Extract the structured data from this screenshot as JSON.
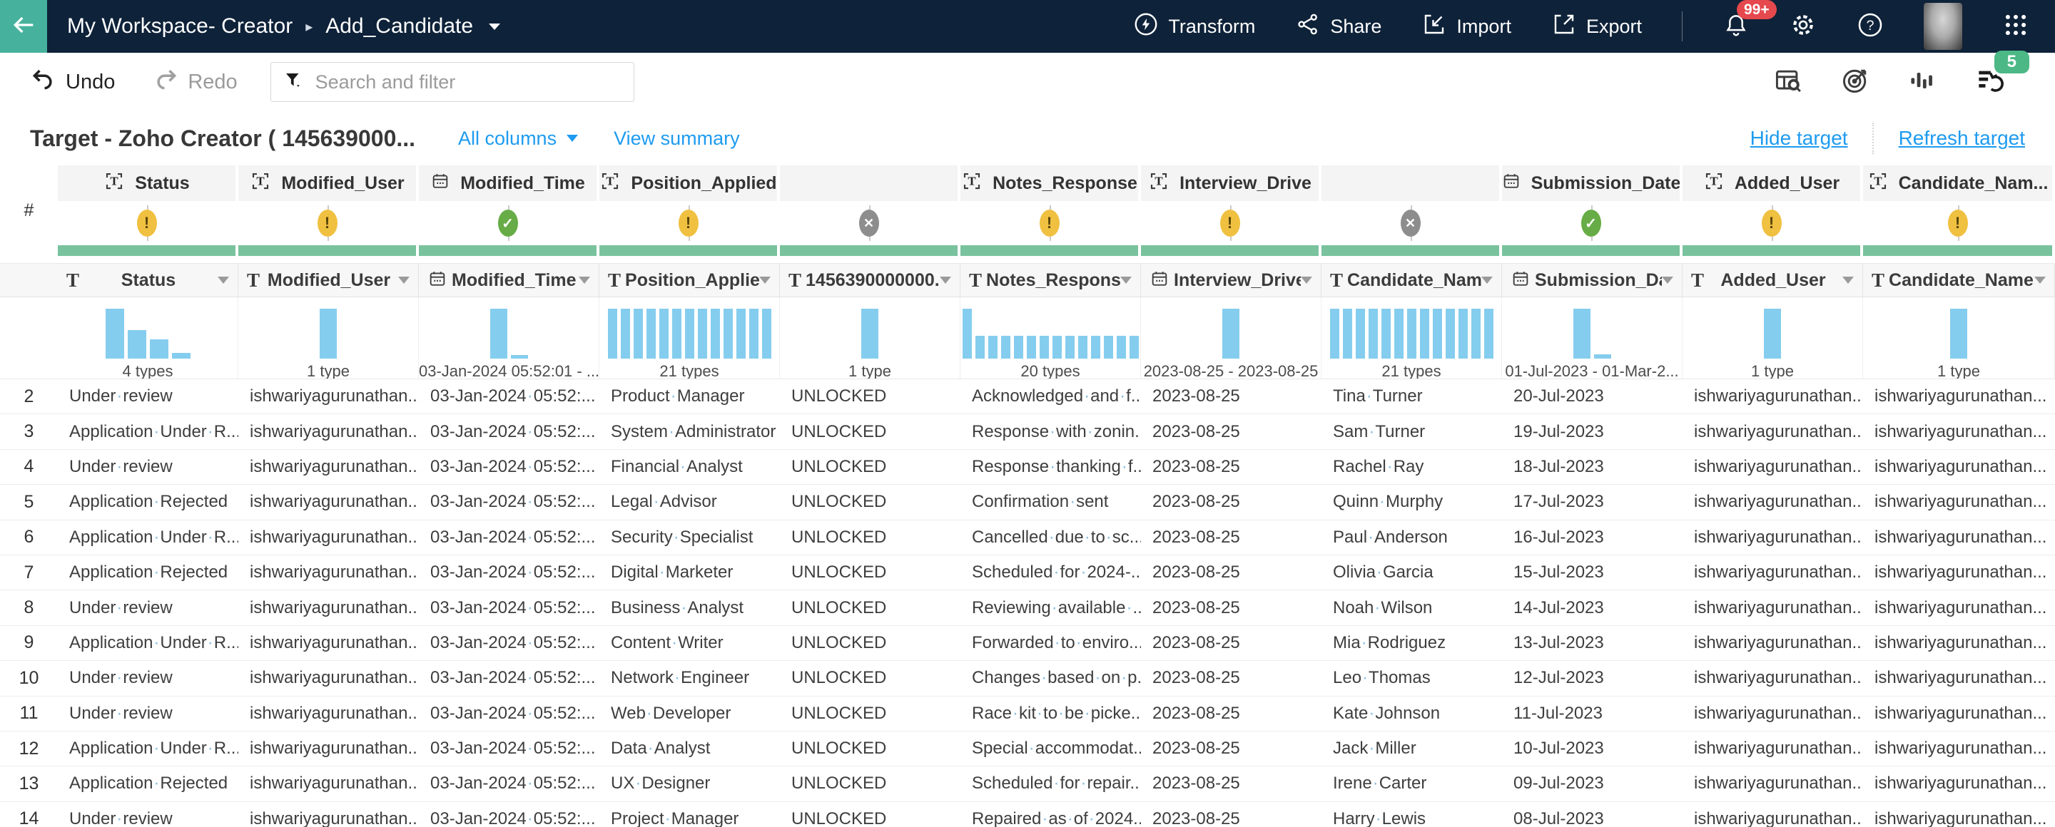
{
  "topbar": {
    "breadcrumb_root": "My Workspace- Creator",
    "breadcrumb_current": "Add_Candidate",
    "transform_label": "Transform",
    "share_label": "Share",
    "import_label": "Import",
    "export_label": "Export",
    "notification_badge": "99+"
  },
  "toolbar": {
    "undo_label": "Undo",
    "redo_label": "Redo",
    "search_placeholder": "Search and filter",
    "pipeline_badge": "5"
  },
  "target_bar": {
    "title": "Target - Zoho Creator ( 145639000...",
    "all_columns_label": "All columns",
    "view_summary_label": "View summary",
    "hide_target_label": "Hide target",
    "refresh_target_label": "Refresh target"
  },
  "colors": {
    "topbar_bg": "#0e2239",
    "back_teal": "#46b29d",
    "accent_blue": "#1e9bf0",
    "progress_green": "#79c29e",
    "status_ok": "#67ac46",
    "status_warning": "#f0c041",
    "status_unmapped": "#8d8d8d",
    "histogram_bar": "#85cdee",
    "badge_green": "#4cb885",
    "badge_red": "#e5484d"
  },
  "grid": {
    "row_header": "#",
    "columns": [
      {
        "target": {
          "name": "Status",
          "type": "text",
          "status": "warning"
        },
        "source": {
          "name": "Status",
          "type": "text"
        },
        "hist": {
          "bars": [
            100,
            57,
            38,
            11
          ],
          "label": "4 types"
        }
      },
      {
        "target": {
          "name": "Modified_User",
          "type": "text",
          "status": "warning"
        },
        "source": {
          "name": "Modified_User",
          "type": "text"
        },
        "hist": {
          "bars": [
            100
          ],
          "label": "1 type"
        }
      },
      {
        "target": {
          "name": "Modified_Time",
          "type": "date",
          "status": "ok"
        },
        "source": {
          "name": "Modified_Time",
          "type": "date"
        },
        "hist": {
          "bars": [
            100,
            7
          ],
          "label": "03-Jan-2024 05:52:01 - ..."
        }
      },
      {
        "target": {
          "name": "Position_Applied",
          "type": "text",
          "status": "warning"
        },
        "source": {
          "name": "Position_Applied",
          "type": "text"
        },
        "hist": {
          "bars": [
            100,
            100,
            100,
            100,
            100,
            100,
            100,
            100,
            100,
            100,
            100,
            100,
            100
          ],
          "label": "21 types"
        }
      },
      {
        "target": {
          "name": "",
          "type": "",
          "status": "none"
        },
        "source": {
          "name": "1456390000000...",
          "type": "text"
        },
        "hist": {
          "bars": [
            100
          ],
          "label": "1 type"
        }
      },
      {
        "target": {
          "name": "Notes_Response",
          "type": "text",
          "status": "warning"
        },
        "source": {
          "name": "Notes_Response",
          "type": "text"
        },
        "hist": {
          "bars": [
            100,
            46,
            46,
            46,
            46,
            46,
            46,
            46,
            46,
            46,
            46,
            46,
            46,
            46
          ],
          "label": "20 types"
        }
      },
      {
        "target": {
          "name": "Interview_Drive",
          "type": "text",
          "status": "warning"
        },
        "source": {
          "name": "Interview_Drive",
          "type": "date"
        },
        "hist": {
          "bars": [
            100
          ],
          "label": "2023-08-25 - 2023-08-25"
        }
      },
      {
        "target": {
          "name": "",
          "type": "",
          "status": "none"
        },
        "source": {
          "name": "Candidate_Name",
          "type": "text"
        },
        "hist": {
          "bars": [
            100,
            100,
            100,
            100,
            100,
            100,
            100,
            100,
            100,
            100,
            100,
            100,
            100
          ],
          "label": "21 types"
        }
      },
      {
        "target": {
          "name": "Submission_Date",
          "type": "date",
          "status": "ok"
        },
        "source": {
          "name": "Submission_Date",
          "type": "date"
        },
        "hist": {
          "bars": [
            100,
            8
          ],
          "label": "01-Jul-2023 - 01-Mar-2..."
        }
      },
      {
        "target": {
          "name": "Added_User",
          "type": "text",
          "status": "warning"
        },
        "source": {
          "name": "Added_User",
          "type": "text"
        },
        "hist": {
          "bars": [
            100
          ],
          "label": "1 type"
        }
      },
      {
        "target": {
          "name": "Candidate_Nam...",
          "type": "text",
          "status": "warning"
        },
        "source": {
          "name": "Candidate_Name....",
          "type": "text"
        },
        "hist": {
          "bars": [
            100
          ],
          "label": "1 type"
        }
      }
    ],
    "rows": [
      {
        "num": "2",
        "cells": [
          "Under review",
          "ishwariyagurunathan...",
          "03-Jan-2024 05:52:...",
          "Product Manager",
          "UNLOCKED",
          "Acknowledged and f...",
          "2023-08-25",
          "Tina Turner",
          "20-Jul-2023",
          "ishwariyagurunathan...",
          "ishwariyagurunathan..."
        ]
      },
      {
        "num": "3",
        "cells": [
          "Application Under R...",
          "ishwariyagurunathan...",
          "03-Jan-2024 05:52:...",
          "System Administrator",
          "UNLOCKED",
          "Response with zonin...",
          "2023-08-25",
          "Sam Turner",
          "19-Jul-2023",
          "ishwariyagurunathan...",
          "ishwariyagurunathan..."
        ]
      },
      {
        "num": "4",
        "cells": [
          "Under review",
          "ishwariyagurunathan...",
          "03-Jan-2024 05:52:...",
          "Financial Analyst",
          "UNLOCKED",
          "Response thanking f...",
          "2023-08-25",
          "Rachel Ray",
          "18-Jul-2023",
          "ishwariyagurunathan...",
          "ishwariyagurunathan..."
        ]
      },
      {
        "num": "5",
        "cells": [
          "Application Rejected",
          "ishwariyagurunathan...",
          "03-Jan-2024 05:52:...",
          "Legal Advisor",
          "UNLOCKED",
          "Confirmation sent",
          "2023-08-25",
          "Quinn Murphy",
          "17-Jul-2023",
          "ishwariyagurunathan...",
          "ishwariyagurunathan..."
        ]
      },
      {
        "num": "6",
        "cells": [
          "Application Under R...",
          "ishwariyagurunathan...",
          "03-Jan-2024 05:52:...",
          "Security Specialist",
          "UNLOCKED",
          "Cancelled due to sc...",
          "2023-08-25",
          "Paul Anderson",
          "16-Jul-2023",
          "ishwariyagurunathan...",
          "ishwariyagurunathan..."
        ]
      },
      {
        "num": "7",
        "cells": [
          "Application Rejected",
          "ishwariyagurunathan...",
          "03-Jan-2024 05:52:...",
          "Digital Marketer",
          "UNLOCKED",
          "Scheduled for 2024-...",
          "2023-08-25",
          "Olivia Garcia",
          "15-Jul-2023",
          "ishwariyagurunathan...",
          "ishwariyagurunathan..."
        ]
      },
      {
        "num": "8",
        "cells": [
          "Under review",
          "ishwariyagurunathan...",
          "03-Jan-2024 05:52:...",
          "Business Analyst",
          "UNLOCKED",
          "Reviewing available ...",
          "2023-08-25",
          "Noah Wilson",
          "14-Jul-2023",
          "ishwariyagurunathan...",
          "ishwariyagurunathan..."
        ]
      },
      {
        "num": "9",
        "cells": [
          "Application Under R...",
          "ishwariyagurunathan...",
          "03-Jan-2024 05:52:...",
          "Content Writer",
          "UNLOCKED",
          "Forwarded to enviro...",
          "2023-08-25",
          "Mia Rodriguez",
          "13-Jul-2023",
          "ishwariyagurunathan...",
          "ishwariyagurunathan..."
        ]
      },
      {
        "num": "10",
        "cells": [
          "Under review",
          "ishwariyagurunathan...",
          "03-Jan-2024 05:52:...",
          "Network Engineer",
          "UNLOCKED",
          "Changes based on p...",
          "2023-08-25",
          "Leo Thomas",
          "12-Jul-2023",
          "ishwariyagurunathan...",
          "ishwariyagurunathan..."
        ]
      },
      {
        "num": "11",
        "cells": [
          "Under review",
          "ishwariyagurunathan...",
          "03-Jan-2024 05:52:...",
          "Web Developer",
          "UNLOCKED",
          "Race kit to be picke...",
          "2023-08-25",
          "Kate Johnson",
          "11-Jul-2023",
          "ishwariyagurunathan...",
          "ishwariyagurunathan..."
        ]
      },
      {
        "num": "12",
        "cells": [
          "Application Under R...",
          "ishwariyagurunathan...",
          "03-Jan-2024 05:52:...",
          "Data Analyst",
          "UNLOCKED",
          "Special accommodat...",
          "2023-08-25",
          "Jack Miller",
          "10-Jul-2023",
          "ishwariyagurunathan...",
          "ishwariyagurunathan..."
        ]
      },
      {
        "num": "13",
        "cells": [
          "Application Rejected",
          "ishwariyagurunathan...",
          "03-Jan-2024 05:52:...",
          "UX Designer",
          "UNLOCKED",
          "Scheduled for repair...",
          "2023-08-25",
          "Irene Carter",
          "09-Jul-2023",
          "ishwariyagurunathan...",
          "ishwariyagurunathan..."
        ]
      },
      {
        "num": "14",
        "cells": [
          "Under review",
          "ishwariyagurunathan...",
          "03-Jan-2024 05:52:...",
          "Project Manager",
          "UNLOCKED",
          "Repaired as of 2024...",
          "2023-08-25",
          "Harry Lewis",
          "08-Jul-2023",
          "ishwariyagurunathan...",
          "ishwariyagurunathan..."
        ]
      }
    ]
  }
}
